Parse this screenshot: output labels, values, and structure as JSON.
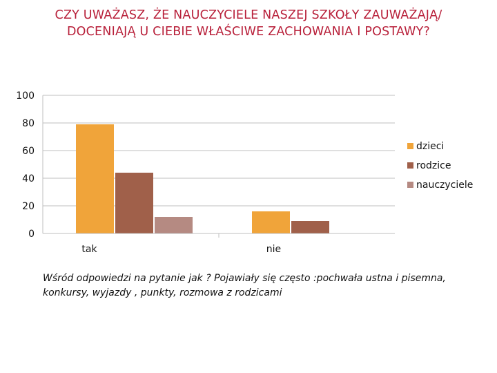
{
  "slide": {
    "title": "CZY UWAŻASZ, ŻE NAUCZYCIELE NASZEJ SZKOŁY ZAUWAŻAJĄ/ DOCENIAJĄ U CIEBIE  WŁAŚCIWE ZACHOWANIA I POSTAWY?",
    "footnote": "Wśród  odpowiedzi na pytanie jak ?  Pojawiały się często :pochwała ustna i pisemna, konkursy, wyjazdy , punkty, rozmowa z rodzicami"
  },
  "chart_data": {
    "type": "bar",
    "categories": [
      "tak",
      "nie"
    ],
    "series": [
      {
        "name": "dzieci",
        "values": [
          79,
          16
        ],
        "color": "#f0a43a"
      },
      {
        "name": "rodzice",
        "values": [
          44,
          9
        ],
        "color": "#a0604a"
      },
      {
        "name": "nauczyciele",
        "values": [
          12,
          0
        ],
        "color": "#b58a82"
      }
    ],
    "yticks": [
      0,
      20,
      40,
      60,
      80,
      100
    ],
    "ylim": [
      0,
      100
    ],
    "grid": true,
    "legend": "right",
    "grid_color": "#bfbfbf"
  }
}
